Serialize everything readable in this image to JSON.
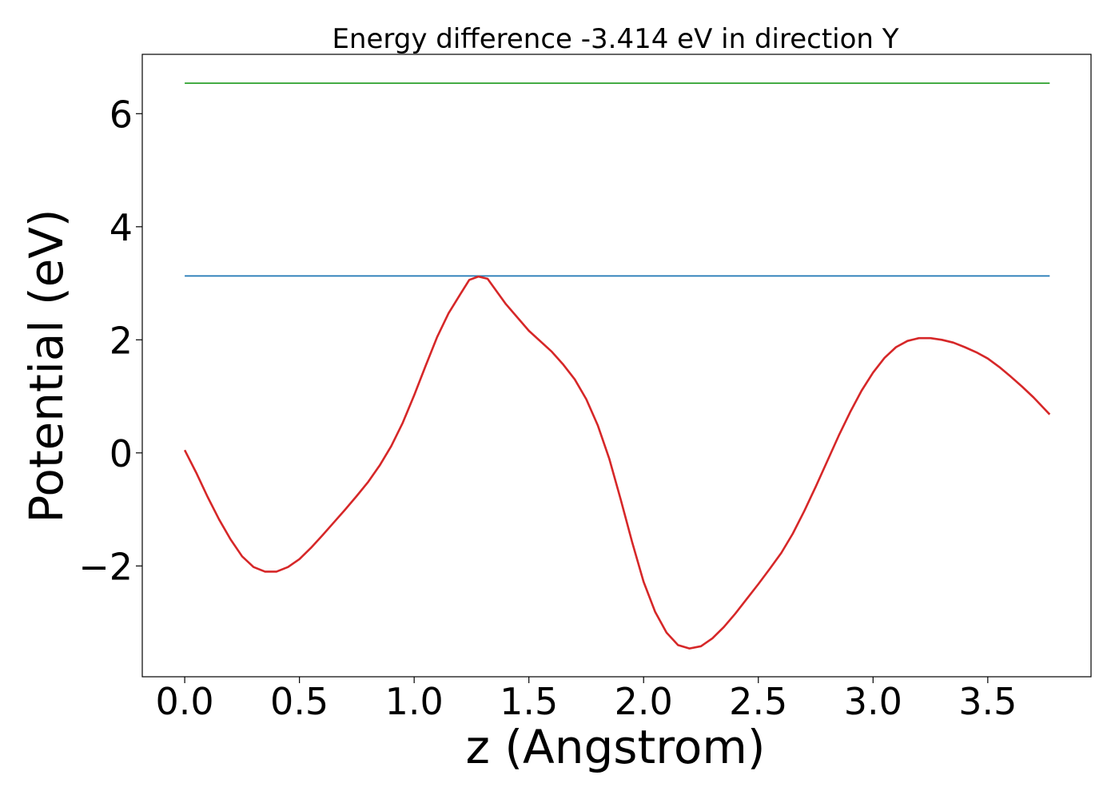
{
  "chart_data": {
    "type": "line",
    "title": "Energy difference -3.414 eV in direction Y",
    "xlabel": "z (Angstrom)",
    "ylabel": "Potential (eV)",
    "xlim": [
      -0.185,
      3.95
    ],
    "ylim": [
      -3.96,
      7.05
    ],
    "x_ticks": [
      0.0,
      0.5,
      1.0,
      1.5,
      2.0,
      2.5,
      3.0,
      3.5
    ],
    "x_tick_labels": [
      "0.0",
      "0.5",
      "1.0",
      "1.5",
      "2.0",
      "2.5",
      "3.0",
      "3.5"
    ],
    "y_ticks": [
      -2,
      0,
      2,
      4,
      6
    ],
    "y_tick_labels": [
      "−2",
      "0",
      "2",
      "4",
      "6"
    ],
    "grid": false,
    "series": [
      {
        "color": "#2ca02c",
        "x": [
          0.0,
          3.77
        ],
        "y": [
          6.54,
          6.54
        ]
      },
      {
        "color": "#1f77b4",
        "x": [
          0.0,
          3.77
        ],
        "y": [
          3.13,
          3.13
        ]
      },
      {
        "color": "#d62728",
        "x": [
          0.0,
          0.05,
          0.1,
          0.15,
          0.2,
          0.25,
          0.3,
          0.35,
          0.4,
          0.45,
          0.5,
          0.55,
          0.6,
          0.65,
          0.7,
          0.75,
          0.8,
          0.85,
          0.9,
          0.95,
          1.0,
          1.05,
          1.1,
          1.15,
          1.2,
          1.24,
          1.28,
          1.32,
          1.4,
          1.5,
          1.6,
          1.65,
          1.7,
          1.75,
          1.8,
          1.85,
          1.9,
          1.95,
          2.0,
          2.05,
          2.1,
          2.15,
          2.2,
          2.25,
          2.3,
          2.35,
          2.4,
          2.45,
          2.5,
          2.55,
          2.6,
          2.65,
          2.7,
          2.75,
          2.8,
          2.85,
          2.9,
          2.95,
          3.0,
          3.05,
          3.1,
          3.15,
          3.2,
          3.25,
          3.3,
          3.35,
          3.4,
          3.45,
          3.5,
          3.55,
          3.6,
          3.65,
          3.7,
          3.77
        ],
        "y": [
          0.05,
          -0.35,
          -0.78,
          -1.18,
          -1.53,
          -1.83,
          -2.02,
          -2.1,
          -2.1,
          -2.02,
          -1.88,
          -1.68,
          -1.46,
          -1.23,
          -1.0,
          -0.76,
          -0.51,
          -0.22,
          0.12,
          0.53,
          1.02,
          1.54,
          2.05,
          2.47,
          2.8,
          3.06,
          3.12,
          3.08,
          2.63,
          2.16,
          1.79,
          1.56,
          1.3,
          0.95,
          0.49,
          -0.1,
          -0.82,
          -1.58,
          -2.28,
          -2.81,
          -3.18,
          -3.4,
          -3.46,
          -3.42,
          -3.28,
          -3.08,
          -2.84,
          -2.58,
          -2.32,
          -2.05,
          -1.77,
          -1.43,
          -1.03,
          -0.6,
          -0.15,
          0.3,
          0.72,
          1.1,
          1.42,
          1.68,
          1.87,
          1.98,
          2.03,
          2.03,
          2.0,
          1.95,
          1.87,
          1.78,
          1.67,
          1.52,
          1.35,
          1.17,
          0.98,
          0.68
        ]
      }
    ]
  }
}
